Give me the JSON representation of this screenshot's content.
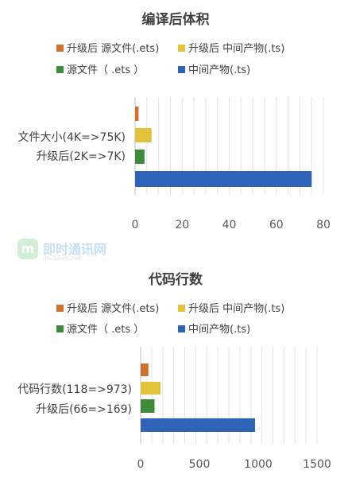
{
  "chart_data": [
    {
      "type": "bar",
      "orientation": "horizontal",
      "title": "编译后体积",
      "categories": [
        "文件大小(4K=>75K)",
        "升级后(2K=>7K)"
      ],
      "series": [
        {
          "name": "升级后 源文件(.ets)",
          "color": "#d2702e",
          "value": 1.5
        },
        {
          "name": "升级后 中间产物(.ts)",
          "color": "#e3c23b",
          "value": 7
        },
        {
          "name": "源文件（ .ets ）",
          "color": "#3f8b3c",
          "value": 4
        },
        {
          "name": "中间产物(.ts)",
          "color": "#2e63b8",
          "value": 75
        }
      ],
      "xlim": [
        0,
        80
      ],
      "xticks": [
        0,
        20,
        40,
        60,
        80
      ],
      "grid": true,
      "legend": "top"
    },
    {
      "type": "bar",
      "orientation": "horizontal",
      "title": "代码行数",
      "categories": [
        "代码行数(118=>973)",
        "升级后(66=>169)"
      ],
      "series": [
        {
          "name": "升级后 源文件(.ets)",
          "color": "#d2702e",
          "value": 66
        },
        {
          "name": "升级后 中间产物(.ts)",
          "color": "#e3c23b",
          "value": 169
        },
        {
          "name": "源文件（ .ets ）",
          "color": "#3f8b3c",
          "value": 118
        },
        {
          "name": "中间产物(.ts)",
          "color": "#2e63b8",
          "value": 973
        }
      ],
      "xlim": [
        0,
        1500
      ],
      "xticks": [
        0,
        500,
        1000,
        1500
      ],
      "grid": true,
      "legend": "top"
    }
  ],
  "watermark": {
    "logo_glyph": "m",
    "text": "即时通讯网",
    "sub": "im.52im.net"
  }
}
